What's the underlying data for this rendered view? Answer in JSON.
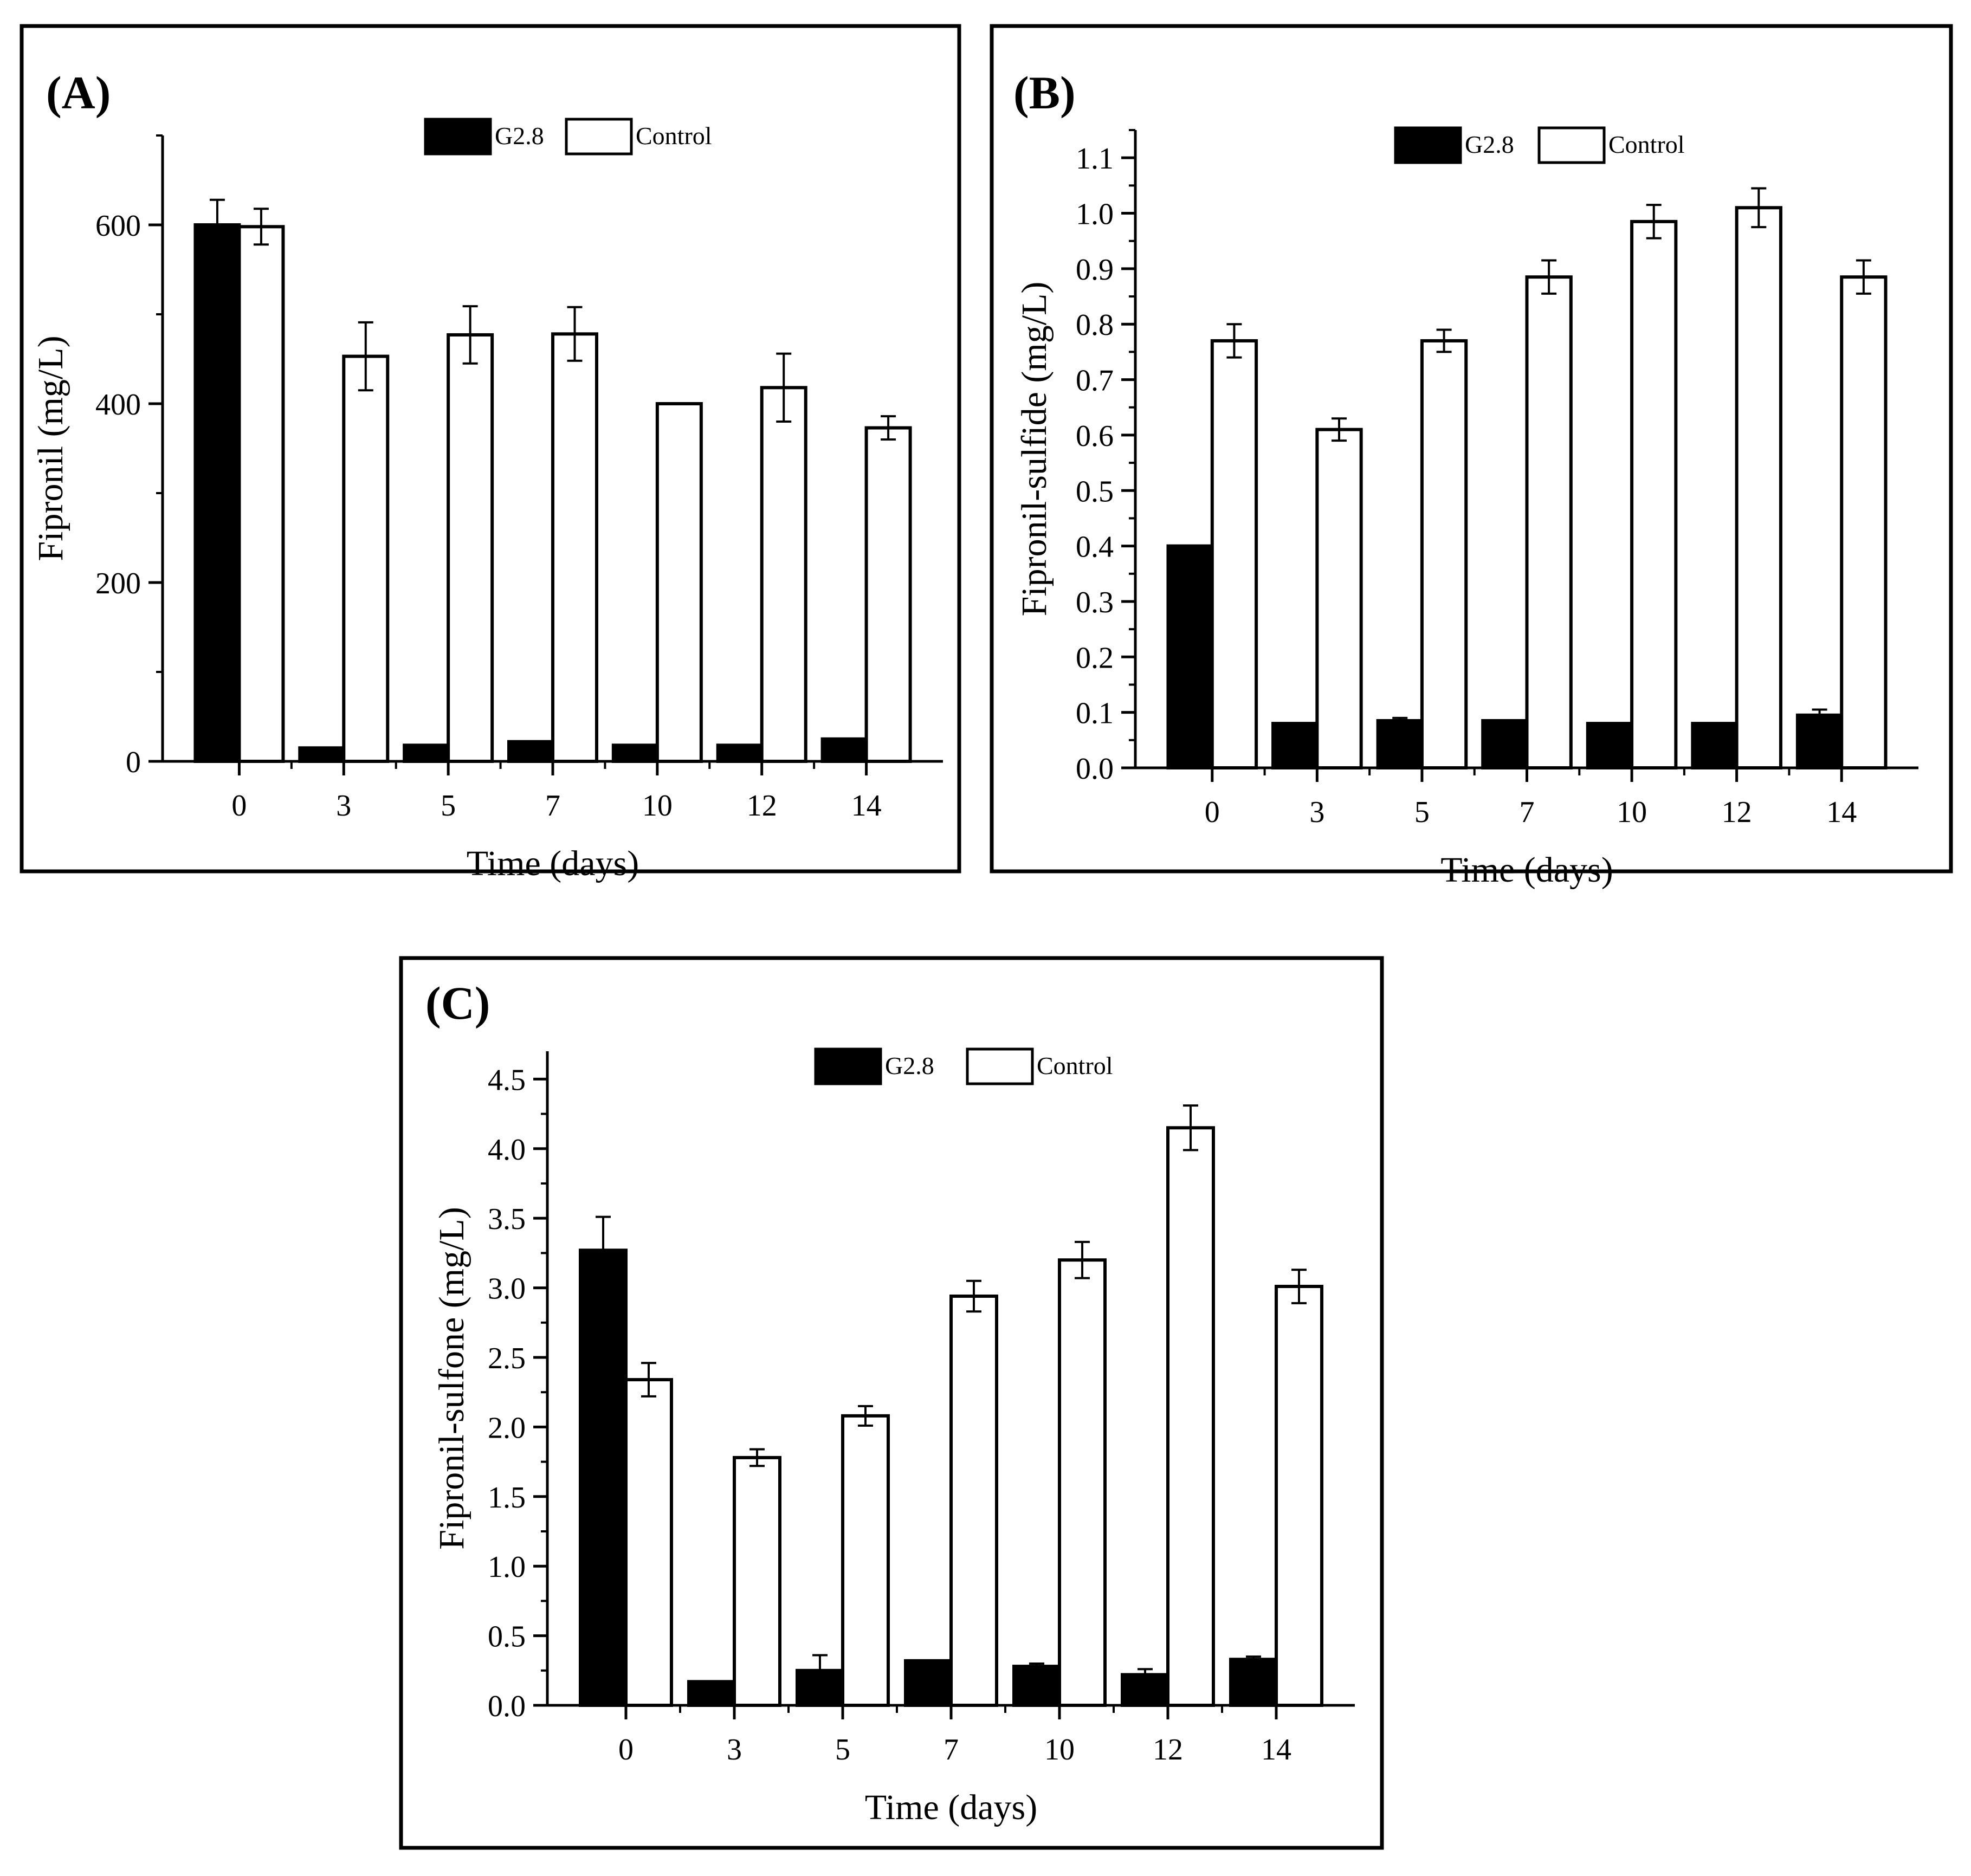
{
  "figure": {
    "panels": [
      "A",
      "B",
      "C"
    ]
  },
  "chart_data": [
    {
      "id": "A",
      "type": "bar",
      "panel_label": "(A)",
      "title": "",
      "xlabel": "Time (days)",
      "ylabel": "Fipronil (mg/L)",
      "categories": [
        "0",
        "3",
        "5",
        "7",
        "10",
        "12",
        "14"
      ],
      "ylim": [
        0,
        700
      ],
      "yticks": [
        0,
        200,
        400,
        600
      ],
      "minor_step": 100,
      "tick_decimals": 0,
      "legend": "top-center",
      "series": [
        {
          "name": "G2.8",
          "fill": "#000000",
          "values": [
            600,
            15,
            18,
            22,
            18,
            18,
            25
          ],
          "errors": [
            28,
            0,
            0,
            0,
            0,
            0,
            0
          ]
        },
        {
          "name": "Control",
          "fill": "#ffffff",
          "values": [
            598,
            453,
            477,
            478,
            400,
            418,
            373
          ],
          "errors": [
            20,
            38,
            32,
            30,
            0,
            38,
            13
          ]
        }
      ]
    },
    {
      "id": "B",
      "type": "bar",
      "panel_label": "(B)",
      "title": "",
      "xlabel": "Time (days)",
      "ylabel": "Fipronil-sulfide (mg/L)",
      "categories": [
        "0",
        "3",
        "5",
        "7",
        "10",
        "12",
        "14"
      ],
      "ylim": [
        0,
        1.15
      ],
      "yticks": [
        0.0,
        0.1,
        0.2,
        0.3,
        0.4,
        0.5,
        0.6,
        0.7,
        0.8,
        0.9,
        1.0,
        1.1
      ],
      "minor_step": 0.05,
      "tick_decimals": 1,
      "legend": "top-center",
      "series": [
        {
          "name": "G2.8",
          "fill": "#000000",
          "values": [
            0.4,
            0.08,
            0.085,
            0.085,
            0.08,
            0.08,
            0.095
          ],
          "errors": [
            0,
            0,
            0.005,
            0,
            0,
            0,
            0.01
          ]
        },
        {
          "name": "Control",
          "fill": "#ffffff",
          "values": [
            0.77,
            0.61,
            0.77,
            0.885,
            0.985,
            1.01,
            0.885
          ],
          "errors": [
            0.03,
            0.02,
            0.02,
            0.03,
            0.03,
            0.035,
            0.03
          ]
        }
      ]
    },
    {
      "id": "C",
      "type": "bar",
      "panel_label": "(C)",
      "title": "",
      "xlabel": "Time (days)",
      "ylabel": "Fipronil-sulfone (mg/L)",
      "categories": [
        "0",
        "3",
        "5",
        "7",
        "10",
        "12",
        "14"
      ],
      "ylim": [
        0,
        4.7
      ],
      "yticks": [
        0.0,
        0.5,
        1.0,
        1.5,
        2.0,
        2.5,
        3.0,
        3.5,
        4.0,
        4.5
      ],
      "minor_step": 0.25,
      "tick_decimals": 1,
      "legend": "top-center",
      "series": [
        {
          "name": "G2.8",
          "fill": "#000000",
          "values": [
            3.27,
            0.17,
            0.25,
            0.32,
            0.28,
            0.22,
            0.33
          ],
          "errors": [
            0.24,
            0,
            0.11,
            0,
            0.02,
            0.04,
            0.02
          ]
        },
        {
          "name": "Control",
          "fill": "#ffffff",
          "values": [
            2.34,
            1.78,
            2.08,
            2.94,
            3.2,
            4.15,
            3.01
          ],
          "errors": [
            0.12,
            0.06,
            0.07,
            0.11,
            0.13,
            0.16,
            0.12
          ]
        }
      ]
    }
  ]
}
